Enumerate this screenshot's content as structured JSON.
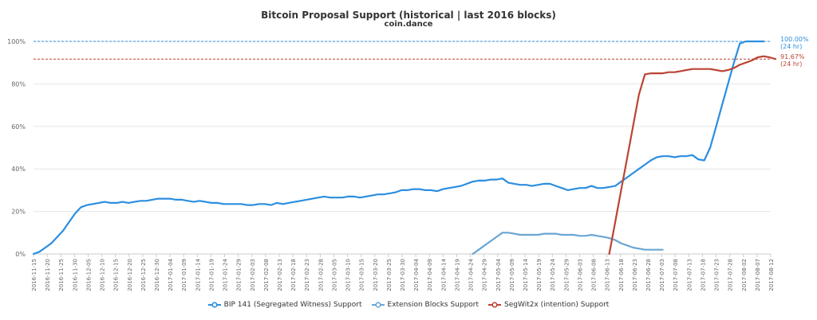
{
  "chart_data": {
    "type": "line",
    "title": "Bitcoin Proposal Support (historical | last 2016 blocks)",
    "subtitle": "coin.dance",
    "xlabel": "",
    "ylabel": "",
    "ylim": [
      0,
      100
    ],
    "y_ticks": [
      "0%",
      "20%",
      "40%",
      "60%",
      "80%",
      "100%"
    ],
    "grid": true,
    "legend_position": "bottom",
    "x_ticks": [
      "2016-11-15",
      "2016-11-20",
      "2016-11-25",
      "2016-11-30",
      "2016-12-05",
      "2016-12-10",
      "2016-12-15",
      "2016-12-20",
      "2016-12-25",
      "2016-12-30",
      "2017-01-04",
      "2017-01-09",
      "2017-01-14",
      "2017-01-19",
      "2017-01-24",
      "2017-01-29",
      "2017-02-03",
      "2017-02-08",
      "2017-02-13",
      "2017-02-18",
      "2017-02-23",
      "2017-02-28",
      "2017-03-05",
      "2017-03-10",
      "2017-03-15",
      "2017-03-20",
      "2017-03-25",
      "2017-03-30",
      "2017-04-04",
      "2017-04-09",
      "2017-04-14",
      "2017-04-19",
      "2017-04-24",
      "2017-04-29",
      "2017-05-04",
      "2017-05-09",
      "2017-05-14",
      "2017-05-19",
      "2017-05-24",
      "2017-05-29",
      "2017-06-03",
      "2017-06-08",
      "2017-06-13",
      "2017-06-18",
      "2017-06-23",
      "2017-06-28",
      "2017-07-03",
      "2017-07-08",
      "2017-07-13",
      "2017-07-18",
      "2017-07-23",
      "2017-07-28",
      "2017-08-02",
      "2017-08-07",
      "2017-08-12"
    ],
    "series": [
      {
        "name": "BIP 141 (Segregated Witness) Support",
        "color": "#2b8ee0",
        "points": [
          [
            0,
            0
          ],
          [
            1,
            1
          ],
          [
            2,
            3
          ],
          [
            3,
            5
          ],
          [
            4,
            8
          ],
          [
            5,
            11
          ],
          [
            6,
            15
          ],
          [
            7,
            19
          ],
          [
            8,
            22
          ],
          [
            9,
            23
          ],
          [
            10,
            23.5
          ],
          [
            11,
            24
          ],
          [
            12,
            24.5
          ],
          [
            13,
            24
          ],
          [
            14,
            24
          ],
          [
            15,
            24.5
          ],
          [
            16,
            24
          ],
          [
            17,
            24.5
          ],
          [
            18,
            25
          ],
          [
            19,
            25
          ],
          [
            20,
            25.5
          ],
          [
            21,
            26
          ],
          [
            22,
            26
          ],
          [
            23,
            26
          ],
          [
            24,
            25.5
          ],
          [
            25,
            25.5
          ],
          [
            26,
            25
          ],
          [
            27,
            24.5
          ],
          [
            28,
            25
          ],
          [
            29,
            24.5
          ],
          [
            30,
            24
          ],
          [
            31,
            24
          ],
          [
            32,
            23.5
          ],
          [
            33,
            23.5
          ],
          [
            34,
            23.5
          ],
          [
            35,
            23.5
          ],
          [
            36,
            23
          ],
          [
            37,
            23
          ],
          [
            38,
            23.5
          ],
          [
            39,
            23.5
          ],
          [
            40,
            23
          ],
          [
            41,
            24
          ],
          [
            42,
            23.5
          ],
          [
            43,
            24
          ],
          [
            44,
            24.5
          ],
          [
            45,
            25
          ],
          [
            46,
            25.5
          ],
          [
            47,
            26
          ],
          [
            48,
            26.5
          ],
          [
            49,
            27
          ],
          [
            50,
            26.5
          ],
          [
            51,
            26.5
          ],
          [
            52,
            26.5
          ],
          [
            53,
            27
          ],
          [
            54,
            27
          ],
          [
            55,
            26.5
          ],
          [
            56,
            27
          ],
          [
            57,
            27.5
          ],
          [
            58,
            28
          ],
          [
            59,
            28
          ],
          [
            60,
            28.5
          ],
          [
            61,
            29
          ],
          [
            62,
            30
          ],
          [
            63,
            30
          ],
          [
            64,
            30.5
          ],
          [
            65,
            30.5
          ],
          [
            66,
            30
          ],
          [
            67,
            30
          ],
          [
            68,
            29.5
          ],
          [
            69,
            30.5
          ],
          [
            70,
            31
          ],
          [
            71,
            31.5
          ],
          [
            72,
            32
          ],
          [
            73,
            33
          ],
          [
            74,
            34
          ],
          [
            75,
            34.5
          ],
          [
            76,
            34.5
          ],
          [
            77,
            35
          ],
          [
            78,
            35
          ],
          [
            79,
            35.5
          ],
          [
            80,
            33.5
          ],
          [
            81,
            33
          ],
          [
            82,
            32.5
          ],
          [
            83,
            32.5
          ],
          [
            84,
            32
          ],
          [
            85,
            32.5
          ],
          [
            86,
            33
          ],
          [
            87,
            33
          ],
          [
            88,
            32
          ],
          [
            89,
            31
          ],
          [
            90,
            30
          ],
          [
            91,
            30.5
          ],
          [
            92,
            31
          ],
          [
            93,
            31
          ],
          [
            94,
            32
          ],
          [
            95,
            31
          ],
          [
            96,
            31
          ],
          [
            97,
            31.5
          ],
          [
            98,
            32
          ],
          [
            99,
            34
          ],
          [
            100,
            36
          ],
          [
            101,
            38
          ],
          [
            102,
            40
          ],
          [
            103,
            42
          ],
          [
            104,
            44
          ],
          [
            105,
            45.5
          ],
          [
            106,
            46
          ],
          [
            107,
            46
          ],
          [
            108,
            45.5
          ],
          [
            109,
            46
          ],
          [
            110,
            46
          ],
          [
            111,
            46.5
          ],
          [
            112,
            44.5
          ],
          [
            113,
            44
          ],
          [
            114,
            50
          ],
          [
            115,
            60
          ],
          [
            116,
            70
          ],
          [
            117,
            80
          ],
          [
            118,
            90
          ],
          [
            119,
            99
          ],
          [
            120,
            100
          ],
          [
            121,
            100
          ],
          [
            122,
            100
          ],
          [
            123,
            100
          ]
        ]
      },
      {
        "name": "Extension Blocks Support",
        "color": "#6aa6d4",
        "points": [
          [
            74,
            0
          ],
          [
            75,
            2
          ],
          [
            76,
            4
          ],
          [
            77,
            6
          ],
          [
            78,
            8
          ],
          [
            79,
            10
          ],
          [
            80,
            10
          ],
          [
            81,
            9.5
          ],
          [
            82,
            9
          ],
          [
            83,
            9
          ],
          [
            84,
            9
          ],
          [
            85,
            9
          ],
          [
            86,
            9.5
          ],
          [
            87,
            9.5
          ],
          [
            88,
            9.5
          ],
          [
            89,
            9
          ],
          [
            90,
            9
          ],
          [
            91,
            9
          ],
          [
            92,
            8.5
          ],
          [
            93,
            8.5
          ],
          [
            94,
            9
          ],
          [
            95,
            8.5
          ],
          [
            96,
            8
          ],
          [
            97,
            7.5
          ],
          [
            98,
            6.5
          ],
          [
            99,
            5
          ],
          [
            100,
            4
          ],
          [
            101,
            3
          ],
          [
            102,
            2.5
          ],
          [
            103,
            2
          ],
          [
            104,
            2
          ],
          [
            105,
            2
          ],
          [
            106,
            2
          ]
        ]
      },
      {
        "name": "SegWit2x (intention) Support",
        "color": "#bb4433",
        "points": [
          [
            97,
            0
          ],
          [
            98,
            15
          ],
          [
            99,
            30
          ],
          [
            100,
            45
          ],
          [
            101,
            60
          ],
          [
            102,
            75
          ],
          [
            103,
            84.5
          ],
          [
            104,
            85
          ],
          [
            105,
            85
          ],
          [
            106,
            85
          ],
          [
            107,
            85.5
          ],
          [
            108,
            85.5
          ],
          [
            109,
            86
          ],
          [
            110,
            86.5
          ],
          [
            111,
            87
          ],
          [
            112,
            87
          ],
          [
            113,
            87
          ],
          [
            114,
            87
          ],
          [
            115,
            86.5
          ],
          [
            116,
            86
          ],
          [
            117,
            86.5
          ],
          [
            118,
            87.5
          ],
          [
            119,
            89
          ],
          [
            120,
            90
          ],
          [
            121,
            91
          ],
          [
            122,
            92.5
          ],
          [
            123,
            93
          ],
          [
            124,
            92.5
          ],
          [
            125,
            91.67
          ]
        ]
      }
    ],
    "annotations": [
      {
        "value": 100,
        "color": "#2b8ee0",
        "line1": "100.00%",
        "line2": "(24 hr)"
      },
      {
        "value": 91.67,
        "color": "#bb4433",
        "line1": "91.67%",
        "line2": "(24 hr)"
      }
    ]
  }
}
